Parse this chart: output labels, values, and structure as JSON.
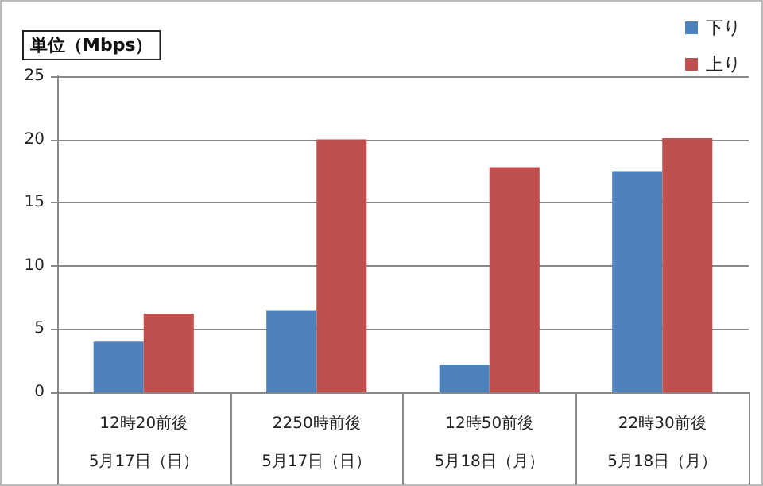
{
  "chart_data": {
    "type": "bar",
    "ylabel": "単位（Mbps）",
    "categories": [
      "12時20前後\n5月17日（日）",
      "2250時前後\n5月17日（日）",
      "12時50前後\n5月18日（月）",
      "22時30前後\n5月18日（月）"
    ],
    "series": [
      {
        "name": "下り",
        "color": "#4f81bd",
        "values": [
          4.0,
          6.5,
          2.2,
          17.5
        ]
      },
      {
        "name": "上り",
        "color": "#c0504d",
        "values": [
          6.2,
          20.0,
          17.8,
          20.1
        ]
      }
    ],
    "ylim": [
      0,
      25
    ],
    "yticks": [
      0,
      5,
      10,
      15,
      20,
      25
    ],
    "grid": "y",
    "legend": "top right"
  }
}
